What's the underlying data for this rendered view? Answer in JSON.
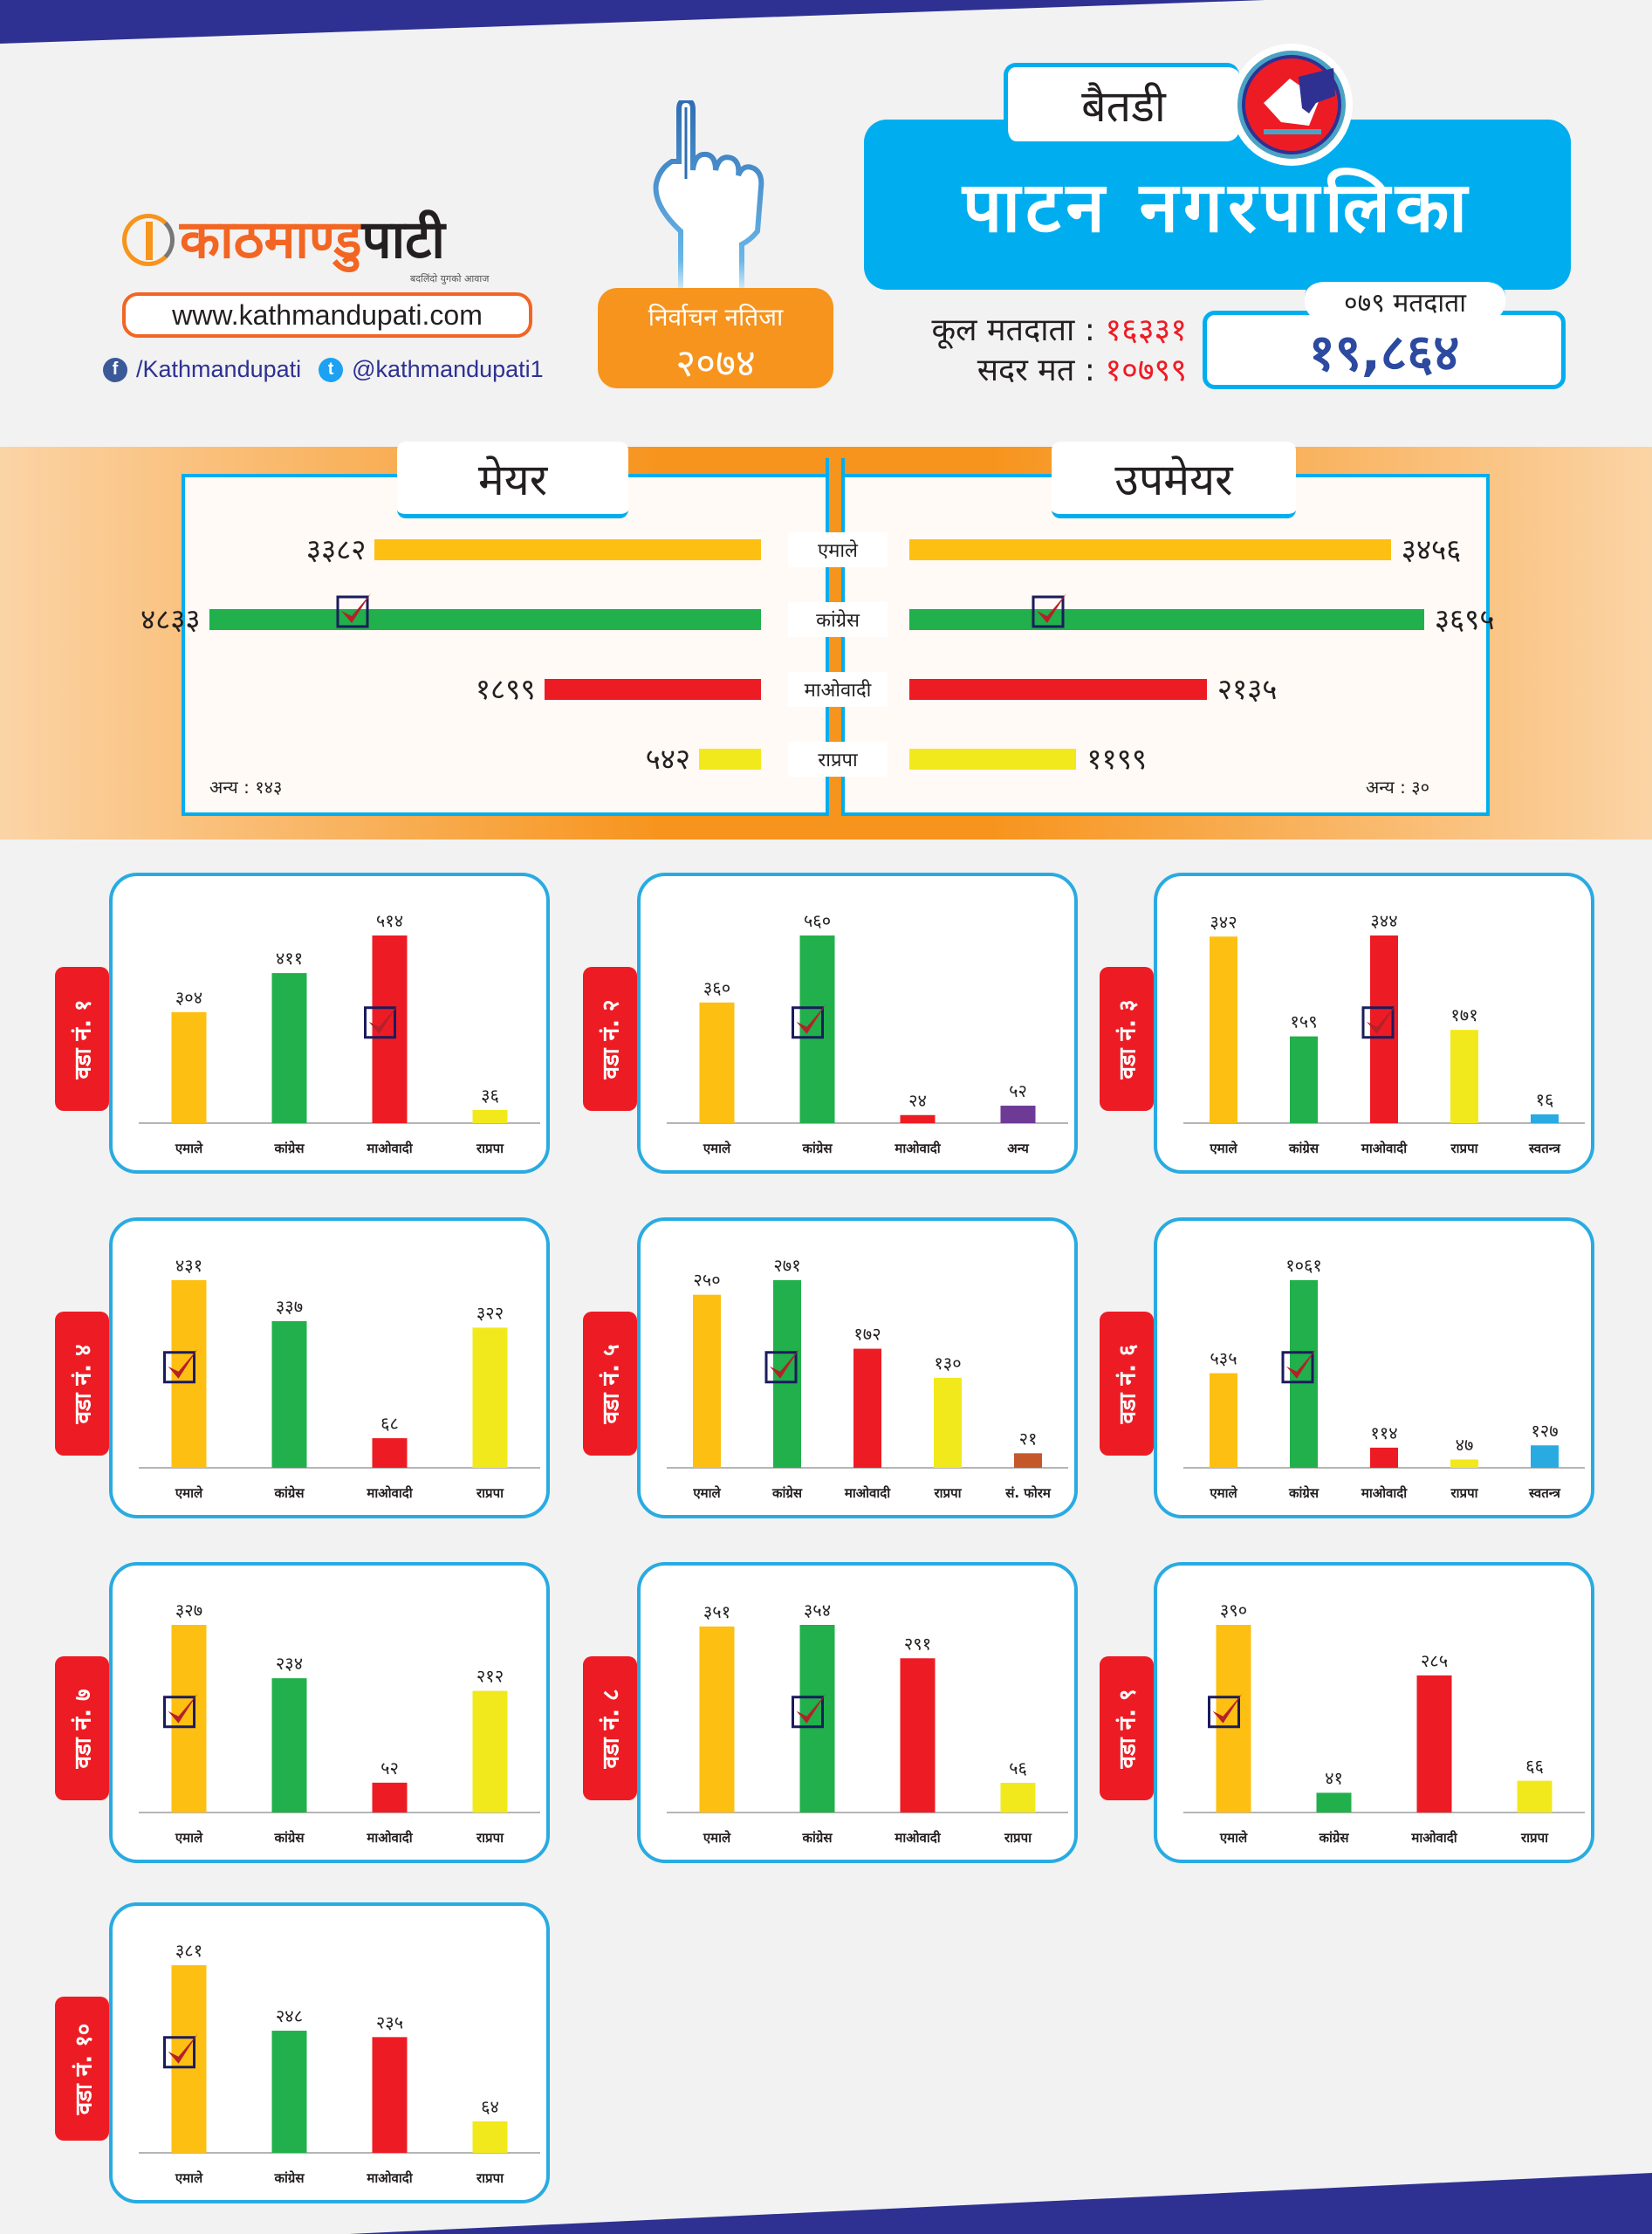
{
  "header": {
    "brand_part1": "काठमाण्डु",
    "brand_part2": "पाटी",
    "tagline": "बदलिंदो युगको आवाज",
    "website": "www.kathmandupati.com",
    "facebook": "/Kathmandupati",
    "twitter": "@kathmandupati1",
    "result_badge_line1": "निर्वाचन नतिजा",
    "result_badge_line2": "२०७४",
    "district": "बैतडी",
    "municipality": "पाटन नगरपालिका",
    "total_voters_label": "कूल मतदाता :",
    "total_voters_value": "१६३३१",
    "valid_votes_label": "सदर मत :",
    "valid_votes_value": "१०७९९",
    "voters_079_label": "०७९ मतदाता",
    "voters_079_value": "१९,८६४"
  },
  "colors": {
    "uml": "#fdbf12",
    "congress": "#21b04b",
    "maoist": "#ed1c24",
    "rpp": "#f2e91c",
    "others": "#6d3a96",
    "independent": "#29abe2",
    "forum": "#c5582b",
    "navy": "#2e3192",
    "accent_blue": "#00aeef",
    "orange": "#f7941d"
  },
  "chart_data": [
    {
      "type": "bar",
      "orientation": "horizontal",
      "title": "मेयर",
      "categories": [
        "एमाले",
        "कांग्रेस",
        "माओवादी",
        "राप्रपा"
      ],
      "values": [
        3382,
        4833,
        1899,
        542
      ],
      "value_labels": [
        "३३८२",
        "४८३३",
        "१८९९",
        "५४२"
      ],
      "colors": [
        "uml",
        "congress",
        "maoist",
        "rpp"
      ],
      "winner_index": 1,
      "others_label": "अन्य : १४३",
      "others_value": 143
    },
    {
      "type": "bar",
      "orientation": "horizontal",
      "title": "उपमेयर",
      "categories": [
        "एमाले",
        "कांग्रेस",
        "माओवादी",
        "राप्रपा"
      ],
      "values": [
        3456,
        3695,
        2135,
        1199
      ],
      "value_labels": [
        "३४५६",
        "३६९५",
        "२१३५",
        "११९९"
      ],
      "colors": [
        "uml",
        "congress",
        "maoist",
        "rpp"
      ],
      "winner_index": 1,
      "others_label": "अन्य : ३०",
      "others_value": 30
    },
    {
      "type": "bar",
      "title": "वडा नं. १",
      "categories": [
        "एमाले",
        "कांग्रेस",
        "माओवादी",
        "राप्रपा"
      ],
      "values": [
        304,
        411,
        514,
        36
      ],
      "value_labels": [
        "३०४",
        "४११",
        "५१४",
        "३६"
      ],
      "colors": [
        "uml",
        "congress",
        "maoist",
        "rpp"
      ],
      "winner_index": 2
    },
    {
      "type": "bar",
      "title": "वडा नं. २",
      "categories": [
        "एमाले",
        "कांग्रेस",
        "माओवादी",
        "अन्य"
      ],
      "values": [
        360,
        560,
        24,
        52
      ],
      "value_labels": [
        "३६०",
        "५६०",
        "२४",
        "५२"
      ],
      "colors": [
        "uml",
        "congress",
        "maoist",
        "others"
      ],
      "winner_index": 1
    },
    {
      "type": "bar",
      "title": "वडा नं. ३",
      "categories": [
        "एमाले",
        "कांग्रेस",
        "माओवादी",
        "राप्रपा",
        "स्वतन्त्र"
      ],
      "values": [
        342,
        159,
        344,
        171,
        16
      ],
      "value_labels": [
        "३४२",
        "१५९",
        "३४४",
        "१७१",
        "१६"
      ],
      "colors": [
        "uml",
        "congress",
        "maoist",
        "rpp",
        "independent"
      ],
      "winner_index": 2
    },
    {
      "type": "bar",
      "title": "वडा नं. ४",
      "categories": [
        "एमाले",
        "कांग्रेस",
        "माओवादी",
        "राप्रपा"
      ],
      "values": [
        431,
        337,
        68,
        322
      ],
      "value_labels": [
        "४३१",
        "३३७",
        "६८",
        "३२२"
      ],
      "colors": [
        "uml",
        "congress",
        "maoist",
        "rpp"
      ],
      "winner_index": 0
    },
    {
      "type": "bar",
      "title": "वडा नं. ५",
      "categories": [
        "एमाले",
        "कांग्रेस",
        "माओवादी",
        "राप्रपा",
        "सं. फोरम"
      ],
      "values": [
        250,
        271,
        172,
        130,
        21
      ],
      "value_labels": [
        "२५०",
        "२७१",
        "१७२",
        "१३०",
        "२१"
      ],
      "colors": [
        "uml",
        "congress",
        "maoist",
        "rpp",
        "forum"
      ],
      "winner_index": 1
    },
    {
      "type": "bar",
      "title": "वडा नं. ६",
      "categories": [
        "एमाले",
        "कांग्रेस",
        "माओवादी",
        "राप्रपा",
        "स्वतन्त्र"
      ],
      "values": [
        535,
        1061,
        114,
        47,
        127
      ],
      "value_labels": [
        "५३५",
        "१०६१",
        "११४",
        "४७",
        "१२७"
      ],
      "colors": [
        "uml",
        "congress",
        "maoist",
        "rpp",
        "independent"
      ],
      "winner_index": 1
    },
    {
      "type": "bar",
      "title": "वडा नं. ७",
      "categories": [
        "एमाले",
        "कांग्रेस",
        "माओवादी",
        "राप्रपा"
      ],
      "values": [
        327,
        234,
        52,
        212
      ],
      "value_labels": [
        "३२७",
        "२३४",
        "५२",
        "२१२"
      ],
      "colors": [
        "uml",
        "congress",
        "maoist",
        "rpp"
      ],
      "winner_index": 0
    },
    {
      "type": "bar",
      "title": "वडा नं. ८",
      "categories": [
        "एमाले",
        "कांग्रेस",
        "माओवादी",
        "राप्रपा"
      ],
      "values": [
        351,
        354,
        291,
        56
      ],
      "value_labels": [
        "३५१",
        "३५४",
        "२९१",
        "५६"
      ],
      "colors": [
        "uml",
        "congress",
        "maoist",
        "rpp"
      ],
      "winner_index": 1
    },
    {
      "type": "bar",
      "title": "वडा नं. ९",
      "categories": [
        "एमाले",
        "कांग्रेस",
        "माओवादी",
        "राप्रपा"
      ],
      "values": [
        390,
        41,
        285,
        66
      ],
      "value_labels": [
        "३९०",
        "४१",
        "२८५",
        "६६"
      ],
      "colors": [
        "uml",
        "congress",
        "maoist",
        "rpp"
      ],
      "winner_index": 0
    },
    {
      "type": "bar",
      "title": "वडा नं. १०",
      "categories": [
        "एमाले",
        "कांग्रेस",
        "माओवादी",
        "राप्रपा"
      ],
      "values": [
        381,
        248,
        235,
        64
      ],
      "value_labels": [
        "३८१",
        "२४८",
        "२३५",
        "६४"
      ],
      "colors": [
        "uml",
        "congress",
        "maoist",
        "rpp"
      ],
      "winner_index": 0
    }
  ]
}
